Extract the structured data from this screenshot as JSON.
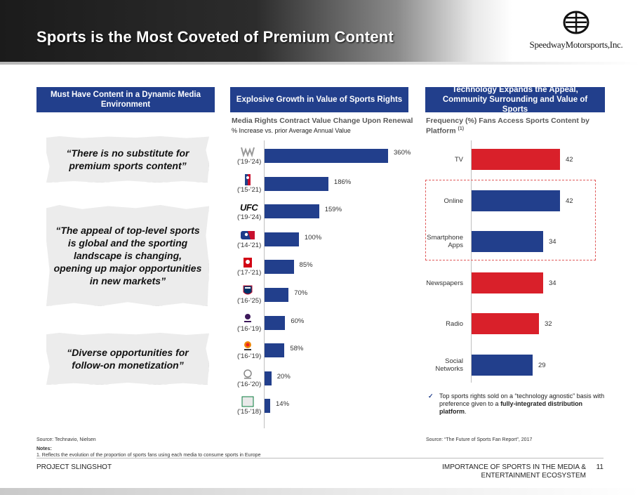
{
  "header": {
    "title": "Sports is the Most Coveted of Premium Content",
    "logo_text": "SpeedwayMotorsports,Inc.",
    "logo_icon": "wheel-icon"
  },
  "columns": {
    "left": {
      "title": "Must Have Content in a Dynamic Media Environment"
    },
    "middle": {
      "title": "Explosive Growth in Value of Sports Rights"
    },
    "right": {
      "title": "Technology Expands the Appeal, Community Surrounding and Value of Sports"
    }
  },
  "quotes": [
    "“There is no substitute for premium sports content”",
    "“The appeal of top-level sports is global and the sporting landscape is changing, opening up major opportunities in new markets”",
    "“Diverse opportunities for follow-on monetization”"
  ],
  "mid_chart": {
    "subtitle": "Media Rights Contract Value Change Upon Renewal",
    "note": "% Increase vs. prior Average Annual Value",
    "logo_text": {
      "ufc": "UFC",
      "serie_a": "Serie A",
      "premier": "Premier League",
      "laliga": "LaLiga"
    },
    "source": "Source: Technavio, Nielsen"
  },
  "chart_data": [
    {
      "type": "bar",
      "orientation": "horizontal",
      "categories": [
        "('19-'24)",
        "('15-'21)",
        "('19-'24)",
        "('14-'21)",
        "('17-'21)",
        "('16-'25)",
        "('16-'19)",
        "('16-'19)",
        "('16-'20)",
        "('15-'18)"
      ],
      "category_icons": [
        "wwe-logo-icon",
        "nba-logo-icon",
        "ufc-logo-icon",
        "mlb-logo-icon",
        "bundesliga-logo-icon",
        "nfl-logo-icon",
        "premier-league-logo-icon",
        "laliga-logo-icon",
        "ligue1-logo-icon",
        "serie-a-logo-icon"
      ],
      "values": [
        360,
        186,
        159,
        100,
        85,
        70,
        60,
        58,
        20,
        14
      ],
      "labels": [
        "360%",
        "186%",
        "159%",
        "100%",
        "85%",
        "70%",
        "60%",
        "58%",
        "20%",
        "14%"
      ],
      "xlim": [
        0,
        360
      ],
      "bar_color": "#223f8c"
    },
    {
      "type": "bar",
      "orientation": "horizontal",
      "title": "Frequency (%) Fans Access Sports Content by Platform",
      "title_sup": "(1)",
      "categories": [
        "TV",
        "Online",
        "Smartphone Apps",
        "Newspapers",
        "Radio",
        "Social Networks"
      ],
      "values": [
        42,
        42,
        34,
        34,
        32,
        29
      ],
      "colors": [
        "#d9202a",
        "#223f8c",
        "#223f8c",
        "#d9202a",
        "#d9202a",
        "#223f8c"
      ],
      "xlim": [
        0,
        42
      ],
      "highlighted_categories": [
        "Online",
        "Smartphone Apps"
      ]
    }
  ],
  "right_panel": {
    "check_note_plain": "Top sports rights sold on a “technology agnostic” basis with preference given to a ",
    "check_note_bold": "fully-integrated distribution platform",
    "check_note_end": ".",
    "source": "Source: “The Future of Sports Fan Report”, 2017"
  },
  "footer": {
    "notes_title": "Notes:",
    "notes_1": "1.   Reflects the evolution of the proportion of sports fans using each media to consume sports in Europe",
    "left": "PROJECT SLINGSHOT",
    "right": "IMPORTANCE OF SPORTS IN THE MEDIA & ENTERTAINMENT ECOSYSTEM",
    "page": "11"
  }
}
